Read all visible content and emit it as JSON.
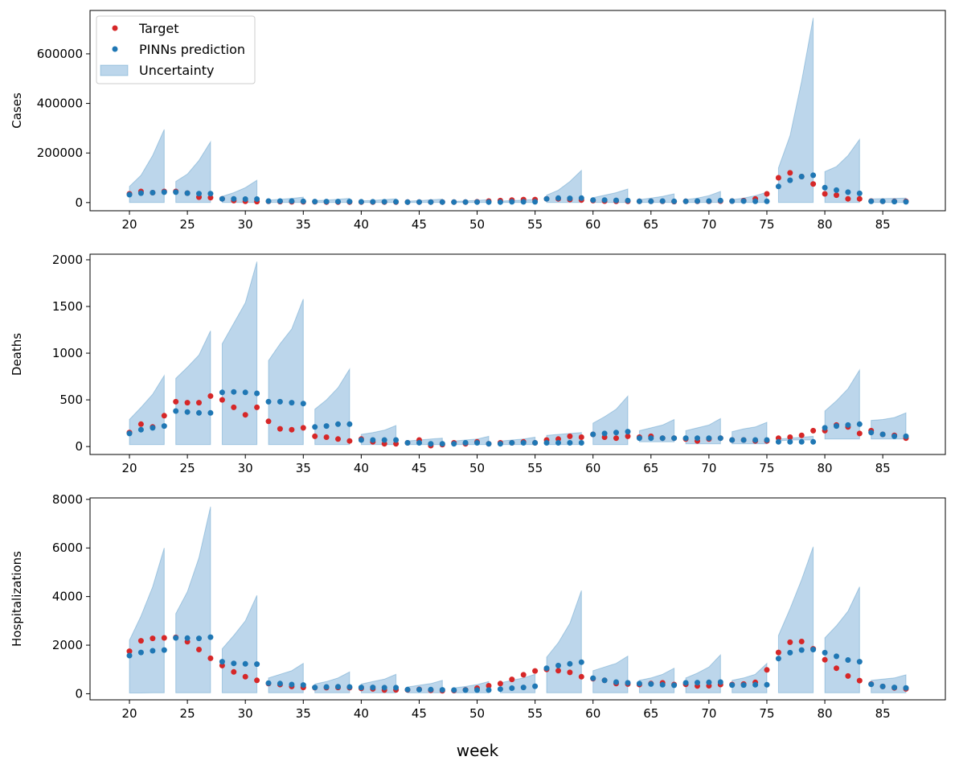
{
  "colors": {
    "target": "#d62728",
    "prediction": "#1f77b4",
    "band_fill": "#a5c8e4",
    "band_edge": "#1f77b4"
  },
  "legend": {
    "target": "Target",
    "prediction": "PINNs prediction",
    "uncertainty": "Uncertainty",
    "placement": "upper-left"
  },
  "chart_data": {
    "type": "scatter",
    "xlabel": "week",
    "x_ticks": [
      20,
      25,
      30,
      35,
      40,
      45,
      50,
      55,
      60,
      65,
      70,
      75,
      80,
      85
    ],
    "xlim": [
      16.6,
      90.4
    ],
    "weeks_start": 20,
    "panels": [
      {
        "ylabel": "Cases",
        "ylim": [
          -33000,
          775000
        ],
        "yticks": [
          0,
          200000,
          400000,
          600000
        ],
        "target": [
          35000,
          45000,
          40000,
          45000,
          45000,
          38000,
          22000,
          20000,
          15000,
          8000,
          5000,
          4000,
          5000,
          4000,
          3000,
          3000,
          3000,
          2000,
          2000,
          2000,
          2000,
          2000,
          2000,
          2000,
          2000,
          2000,
          2000,
          2000,
          2000,
          2000,
          3000,
          6000,
          8000,
          10000,
          12000,
          12000,
          15000,
          15000,
          12000,
          10000,
          8000,
          6000,
          5000,
          5000,
          5000,
          5000,
          5000,
          4000,
          5000,
          5000,
          5000,
          6000,
          6000,
          8000,
          15000,
          35000,
          100000,
          120000,
          105000,
          75000,
          35000,
          30000,
          15000,
          15000,
          6000,
          5000,
          5000,
          5000
        ],
        "prediction": [
          32000,
          38000,
          40000,
          42000,
          42000,
          38000,
          36000,
          36000,
          15000,
          15000,
          14000,
          14000,
          6000,
          6000,
          6000,
          5000,
          4000,
          4000,
          4000,
          4000,
          3000,
          3000,
          3000,
          3000,
          2000,
          2000,
          2000,
          2000,
          2000,
          2000,
          2000,
          2000,
          2000,
          3000,
          3000,
          3000,
          15000,
          18000,
          17000,
          18000,
          10000,
          10000,
          9000,
          8000,
          5000,
          5000,
          6000,
          5000,
          5000,
          6000,
          6000,
          8000,
          6000,
          6000,
          5000,
          5000,
          65000,
          90000,
          105000,
          110000,
          60000,
          50000,
          42000,
          37000,
          5000,
          5000,
          4000,
          3000
        ],
        "band_lower": [
          0,
          0,
          0,
          0,
          0,
          0,
          0,
          0,
          0,
          0,
          0,
          0,
          0,
          0,
          0,
          0,
          0,
          0,
          0,
          0,
          0,
          0,
          0,
          0,
          0,
          0,
          0,
          0,
          0,
          0,
          0,
          0,
          0,
          0,
          0,
          0,
          0,
          0,
          0,
          0,
          0,
          0,
          0,
          0,
          0,
          0,
          0,
          0,
          0,
          0,
          0,
          0,
          0,
          0,
          0,
          0,
          0,
          0,
          0,
          0,
          0,
          0,
          0,
          0,
          0,
          0,
          0,
          0
        ],
        "band_upper": [
          65000,
          110000,
          190000,
          295000,
          85000,
          115000,
          170000,
          245000,
          25000,
          40000,
          60000,
          90000,
          10000,
          13000,
          17000,
          22000,
          8000,
          10000,
          13000,
          17000,
          7000,
          9000,
          12000,
          15000,
          6000,
          8000,
          11000,
          14000,
          5000,
          7000,
          9000,
          12000,
          6000,
          8000,
          10000,
          13000,
          30000,
          50000,
          85000,
          130000,
          20000,
          30000,
          40000,
          55000,
          12000,
          18000,
          25000,
          35000,
          12000,
          18000,
          28000,
          45000,
          12000,
          18000,
          28000,
          42000,
          140000,
          270000,
          490000,
          745000,
          125000,
          145000,
          190000,
          255000,
          15000,
          16000,
          17000,
          18000
        ]
      },
      {
        "ylabel": "Deaths",
        "ylim": [
          -85,
          2060
        ],
        "yticks": [
          0,
          500,
          1000,
          1500,
          2000
        ],
        "target": [
          150,
          240,
          210,
          330,
          480,
          470,
          470,
          540,
          500,
          420,
          340,
          420,
          270,
          190,
          180,
          200,
          110,
          100,
          80,
          60,
          80,
          50,
          30,
          30,
          40,
          70,
          10,
          20,
          40,
          30,
          50,
          30,
          40,
          40,
          50,
          40,
          70,
          80,
          110,
          100,
          130,
          100,
          90,
          110,
          100,
          110,
          90,
          90,
          80,
          60,
          80,
          90,
          70,
          70,
          60,
          60,
          90,
          100,
          120,
          170,
          170,
          230,
          210,
          140,
          170,
          130,
          120,
          90
        ],
        "prediction": [
          140,
          180,
          200,
          220,
          380,
          370,
          360,
          360,
          580,
          585,
          580,
          570,
          480,
          480,
          470,
          460,
          210,
          220,
          240,
          240,
          70,
          70,
          70,
          70,
          40,
          40,
          30,
          30,
          30,
          40,
          40,
          30,
          30,
          40,
          40,
          40,
          40,
          40,
          40,
          40,
          130,
          140,
          150,
          160,
          90,
          90,
          90,
          90,
          90,
          90,
          90,
          90,
          70,
          70,
          70,
          70,
          50,
          50,
          50,
          50,
          200,
          220,
          230,
          240,
          150,
          130,
          110,
          110
        ],
        "band_lower": [
          20,
          20,
          20,
          20,
          20,
          20,
          20,
          20,
          20,
          20,
          20,
          20,
          20,
          20,
          20,
          20,
          20,
          20,
          20,
          20,
          20,
          20,
          20,
          20,
          20,
          20,
          20,
          20,
          20,
          20,
          20,
          20,
          20,
          20,
          20,
          20,
          20,
          20,
          20,
          20,
          20,
          20,
          20,
          20,
          50,
          50,
          50,
          50,
          30,
          30,
          30,
          30,
          30,
          30,
          30,
          30,
          60,
          70,
          70,
          70,
          80,
          80,
          80,
          80,
          80,
          80,
          80,
          80
        ],
        "band_upper": [
          290,
          420,
          560,
          760,
          730,
          850,
          980,
          1240,
          1100,
          1320,
          1540,
          1980,
          920,
          1100,
          1260,
          1580,
          400,
          500,
          630,
          830,
          130,
          150,
          175,
          225,
          60,
          70,
          80,
          90,
          60,
          70,
          80,
          110,
          60,
          70,
          80,
          100,
          120,
          130,
          140,
          150,
          250,
          320,
          400,
          540,
          170,
          200,
          230,
          290,
          170,
          200,
          230,
          300,
          160,
          190,
          210,
          260,
          80,
          90,
          100,
          110,
          380,
          490,
          620,
          820,
          280,
          290,
          310,
          360
        ]
      },
      {
        "ylabel": "Hospitalizations",
        "ylim": [
          -250,
          8060
        ],
        "yticks": [
          0,
          2000,
          4000,
          6000,
          8000
        ],
        "target": [
          1750,
          2180,
          2280,
          2300,
          2320,
          2140,
          1820,
          1460,
          1160,
          900,
          700,
          550,
          420,
          380,
          300,
          260,
          250,
          250,
          260,
          250,
          220,
          200,
          150,
          160,
          160,
          180,
          140,
          120,
          130,
          160,
          230,
          330,
          420,
          590,
          780,
          940,
          1000,
          950,
          880,
          700,
          620,
          550,
          420,
          400,
          380,
          420,
          450,
          380,
          390,
          320,
          330,
          380,
          380,
          400,
          470,
          980,
          1700,
          2120,
          2150,
          1850,
          1400,
          1050,
          730,
          540,
          400,
          300,
          240,
          200
        ],
        "prediction": [
          1570,
          1700,
          1770,
          1800,
          2300,
          2290,
          2280,
          2330,
          1320,
          1250,
          1230,
          1220,
          440,
          420,
          380,
          360,
          260,
          280,
          290,
          280,
          260,
          260,
          250,
          250,
          170,
          170,
          170,
          160,
          150,
          150,
          150,
          150,
          190,
          230,
          260,
          310,
          1050,
          1160,
          1230,
          1300,
          640,
          550,
          480,
          450,
          420,
          400,
          370,
          350,
          450,
          460,
          470,
          480,
          360,
          360,
          370,
          370,
          1450,
          1690,
          1800,
          1820,
          1690,
          1540,
          1390,
          1320,
          390,
          300,
          260,
          240
        ],
        "band_lower": [
          30,
          30,
          40,
          40,
          40,
          40,
          40,
          40,
          40,
          40,
          40,
          40,
          40,
          40,
          40,
          40,
          40,
          40,
          40,
          40,
          40,
          40,
          40,
          40,
          40,
          40,
          40,
          40,
          40,
          40,
          40,
          40,
          40,
          40,
          40,
          40,
          40,
          40,
          40,
          40,
          40,
          40,
          40,
          40,
          40,
          40,
          40,
          40,
          40,
          40,
          40,
          40,
          40,
          40,
          40,
          40,
          40,
          40,
          40,
          40,
          40,
          40,
          40,
          40,
          40,
          40,
          40,
          40
        ],
        "band_upper": [
          2200,
          3200,
          4400,
          6000,
          3300,
          4200,
          5600,
          7700,
          1850,
          2400,
          3000,
          4050,
          650,
          800,
          950,
          1250,
          400,
          500,
          650,
          900,
          400,
          500,
          600,
          800,
          280,
          350,
          420,
          550,
          240,
          300,
          380,
          500,
          450,
          550,
          650,
          800,
          1500,
          2100,
          2900,
          4250,
          950,
          1100,
          1250,
          1550,
          550,
          650,
          800,
          1050,
          650,
          850,
          1100,
          1600,
          550,
          650,
          800,
          1250,
          2400,
          3500,
          4700,
          6050,
          2300,
          2800,
          3400,
          4400,
          550,
          600,
          650,
          780
        ]
      }
    ]
  }
}
